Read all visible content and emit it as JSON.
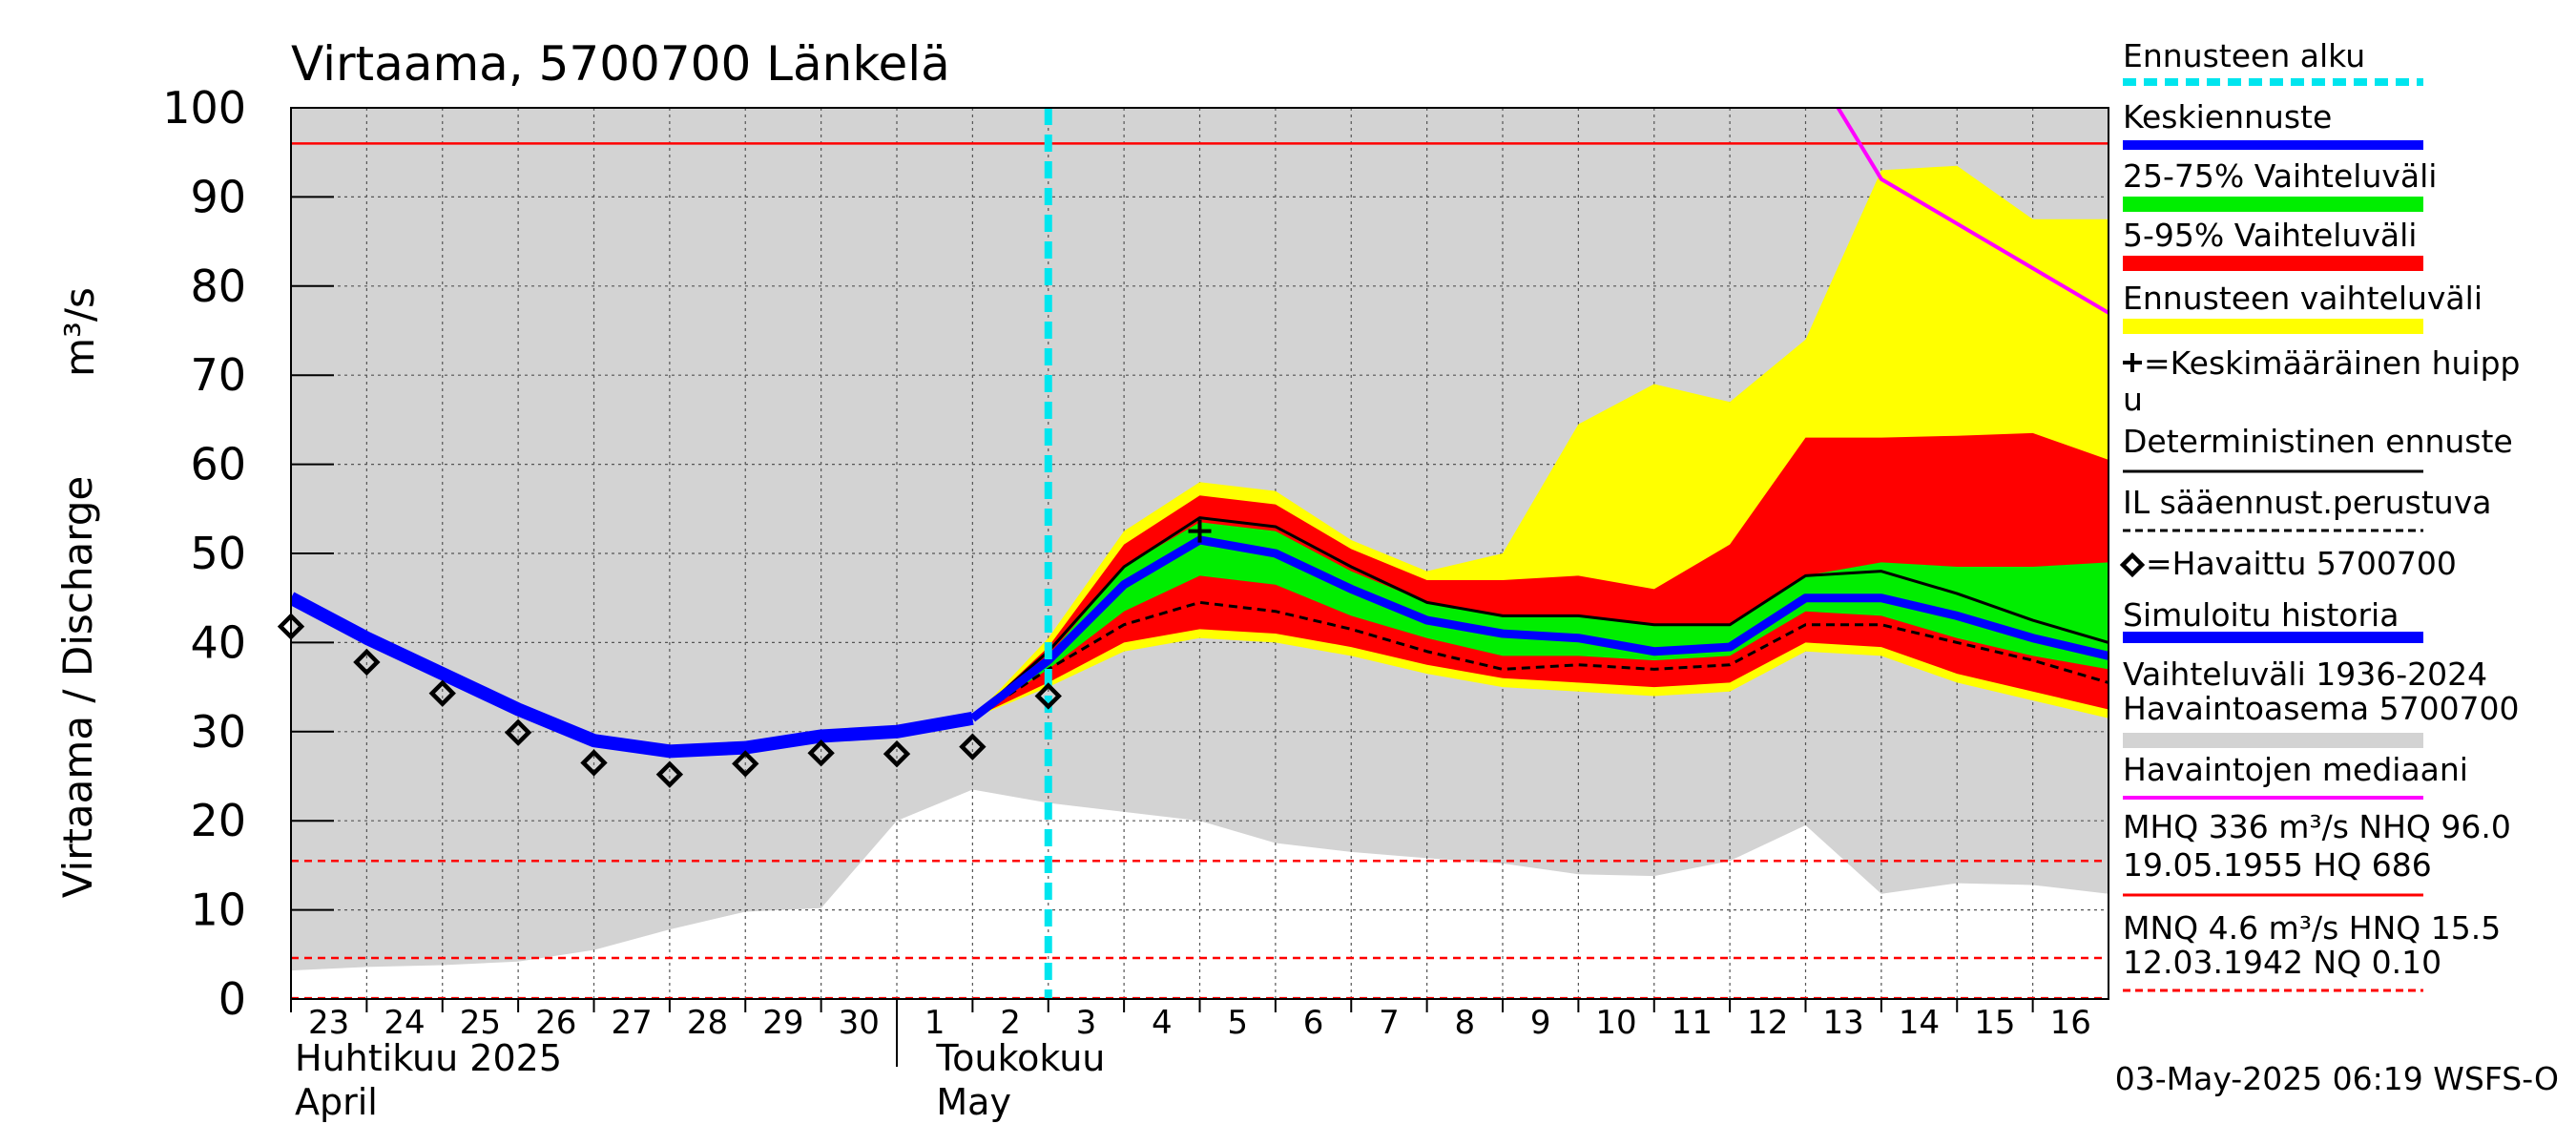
{
  "chart_data": {
    "type": "area",
    "title": "Virtaama, 5700700 Länkelä",
    "ylabel": "Virtaama / Discharge",
    "yunit": "m³/s",
    "ylim": [
      0,
      100
    ],
    "yticks": [
      "0",
      "10",
      "20",
      "30",
      "40",
      "50",
      "60",
      "70",
      "80",
      "90",
      "100"
    ],
    "dates": [
      "2025-04-23",
      "2025-04-24",
      "2025-04-25",
      "2025-04-26",
      "2025-04-27",
      "2025-04-28",
      "2025-04-29",
      "2025-04-30",
      "2025-05-01",
      "2025-05-02",
      "2025-05-03",
      "2025-05-04",
      "2025-05-05",
      "2025-05-06",
      "2025-05-07",
      "2025-05-08",
      "2025-05-09",
      "2025-05-10",
      "2025-05-11",
      "2025-05-12",
      "2025-05-13",
      "2025-05-14",
      "2025-05-15",
      "2025-05-16",
      "2025-05-17"
    ],
    "xtick_labels": [
      "23",
      "24",
      "25",
      "26",
      "27",
      "28",
      "29",
      "30",
      "1",
      "2",
      "3",
      "4",
      "5",
      "6",
      "7",
      "8",
      "9",
      "10",
      "11",
      "12",
      "13",
      "14",
      "15",
      "16"
    ],
    "months": [
      {
        "fi": "Huhtikuu  2025",
        "en": "April"
      },
      {
        "fi": "Toukokuu",
        "en": "May"
      }
    ],
    "forecast_start": "2025-05-03",
    "grid": true,
    "legend_position": "right",
    "climatology_range": {
      "name": "Vaihteluväli 1936-2024 Havaintoasema 5700700",
      "color": "#d3d3d3",
      "x": [
        "2025-04-23",
        "2025-04-24",
        "2025-04-25",
        "2025-04-26",
        "2025-04-27",
        "2025-04-28",
        "2025-04-29",
        "2025-04-30",
        "2025-05-01",
        "2025-05-02",
        "2025-05-03",
        "2025-05-04",
        "2025-05-05",
        "2025-05-06",
        "2025-05-07",
        "2025-05-08",
        "2025-05-09",
        "2025-05-10",
        "2025-05-11",
        "2025-05-12",
        "2025-05-13",
        "2025-05-14",
        "2025-05-15",
        "2025-05-16",
        "2025-05-17"
      ],
      "lower": [
        3.2,
        3.6,
        3.8,
        4.2,
        5.5,
        7.8,
        9.8,
        10.2,
        20.0,
        23.5,
        22.0,
        21.0,
        20.0,
        17.5,
        16.5,
        15.8,
        15.2,
        14.0,
        13.8,
        15.5,
        19.5,
        11.8,
        13.0,
        12.8,
        11.8
      ],
      "upper": [
        100,
        100,
        100,
        100,
        100,
        100,
        100,
        100,
        100,
        100,
        100,
        100,
        100,
        100,
        100,
        100,
        100,
        100,
        100,
        100,
        100,
        100,
        100,
        100,
        100
      ]
    },
    "forecast_range": {
      "name": "Ennusteen vaihteluväli",
      "color": "#ffff00",
      "x": [
        "2025-05-02",
        "2025-05-03",
        "2025-05-04",
        "2025-05-05",
        "2025-05-06",
        "2025-05-07",
        "2025-05-08",
        "2025-05-09",
        "2025-05-10",
        "2025-05-11",
        "2025-05-12",
        "2025-05-13",
        "2025-05-14",
        "2025-05-15",
        "2025-05-16",
        "2025-05-17"
      ],
      "lower": [
        31.5,
        35.0,
        39.0,
        40.5,
        40.0,
        38.5,
        36.5,
        35.0,
        34.5,
        34.0,
        34.5,
        39.0,
        38.5,
        35.5,
        33.5,
        31.5
      ],
      "upper": [
        31.5,
        40.5,
        52.5,
        58.0,
        57.0,
        51.5,
        48.0,
        50.0,
        64.5,
        69.0,
        67.0,
        74.0,
        93.0,
        93.5,
        87.5,
        87.5
      ]
    },
    "range_5_95": {
      "name": "5-95% Vaihteluväli",
      "color": "#ff0000",
      "x": [
        "2025-05-02",
        "2025-05-03",
        "2025-05-04",
        "2025-05-05",
        "2025-05-06",
        "2025-05-07",
        "2025-05-08",
        "2025-05-09",
        "2025-05-10",
        "2025-05-11",
        "2025-05-12",
        "2025-05-13",
        "2025-05-14",
        "2025-05-15",
        "2025-05-16",
        "2025-05-17"
      ],
      "lower": [
        31.5,
        35.5,
        40.0,
        41.5,
        41.0,
        39.5,
        37.5,
        36.0,
        35.5,
        35.0,
        35.5,
        40.0,
        39.5,
        36.5,
        34.5,
        32.5
      ],
      "upper": [
        31.5,
        39.5,
        51.0,
        56.5,
        55.5,
        50.5,
        47.0,
        47.0,
        47.5,
        46.0,
        51.0,
        63.0,
        63.0,
        63.2,
        63.5,
        60.5
      ]
    },
    "range_25_75": {
      "name": "25-75% Vaihteluväli",
      "color": "#00ee00",
      "x": [
        "2025-05-02",
        "2025-05-03",
        "2025-05-04",
        "2025-05-05",
        "2025-05-06",
        "2025-05-07",
        "2025-05-08",
        "2025-05-09",
        "2025-05-10",
        "2025-05-11",
        "2025-05-12",
        "2025-05-13",
        "2025-05-14",
        "2025-05-15",
        "2025-05-16",
        "2025-05-17"
      ],
      "lower": [
        31.5,
        37.0,
        43.5,
        47.5,
        46.5,
        43.0,
        40.5,
        38.5,
        38.5,
        38.0,
        38.5,
        43.5,
        43.0,
        40.5,
        38.5,
        37.0
      ],
      "upper": [
        31.5,
        38.5,
        48.5,
        53.5,
        52.5,
        48.0,
        44.5,
        43.0,
        43.0,
        42.0,
        42.0,
        47.5,
        49.0,
        48.5,
        48.5,
        49.0
      ]
    },
    "series": [
      {
        "name": "Simuloitu historia",
        "color": "#0000ff",
        "x": [
          "2025-04-23",
          "2025-04-24",
          "2025-04-25",
          "2025-04-26",
          "2025-04-27",
          "2025-04-28",
          "2025-04-29",
          "2025-04-30",
          "2025-05-01",
          "2025-05-02"
        ],
        "values": [
          45.0,
          40.5,
          36.5,
          32.5,
          29.0,
          27.8,
          28.2,
          29.5,
          30.0,
          31.5
        ]
      },
      {
        "name": "Keskiennuste",
        "color": "#0000ff",
        "x": [
          "2025-05-02",
          "2025-05-03",
          "2025-05-04",
          "2025-05-05",
          "2025-05-06",
          "2025-05-07",
          "2025-05-08",
          "2025-05-09",
          "2025-05-10",
          "2025-05-11",
          "2025-05-12",
          "2025-05-13",
          "2025-05-14",
          "2025-05-15",
          "2025-05-16",
          "2025-05-17"
        ],
        "values": [
          31.5,
          38.0,
          46.5,
          51.5,
          50.0,
          46.0,
          42.5,
          41.0,
          40.5,
          39.0,
          39.5,
          45.0,
          45.0,
          43.0,
          40.5,
          38.5
        ]
      },
      {
        "name": "Deterministinen ennuste",
        "color": "#000000",
        "x": [
          "2025-05-02",
          "2025-05-03",
          "2025-05-04",
          "2025-05-05",
          "2025-05-06",
          "2025-05-07",
          "2025-05-08",
          "2025-05-09",
          "2025-05-10",
          "2025-05-11",
          "2025-05-12",
          "2025-05-13",
          "2025-05-14",
          "2025-05-15",
          "2025-05-16",
          "2025-05-17"
        ],
        "values": [
          31.5,
          39.0,
          48.5,
          54.0,
          53.0,
          48.5,
          44.5,
          43.0,
          43.0,
          42.0,
          42.0,
          47.5,
          48.0,
          45.5,
          42.5,
          40.0
        ]
      },
      {
        "name": "IL sääennust.perustuva",
        "color": "#000000",
        "x": [
          "2025-05-02",
          "2025-05-03",
          "2025-05-04",
          "2025-05-05",
          "2025-05-06",
          "2025-05-07",
          "2025-05-08",
          "2025-05-09",
          "2025-05-10",
          "2025-05-11",
          "2025-05-12",
          "2025-05-13",
          "2025-05-14",
          "2025-05-15",
          "2025-05-16",
          "2025-05-17"
        ],
        "values": [
          31.5,
          37.0,
          42.0,
          44.5,
          43.5,
          41.5,
          39.0,
          37.0,
          37.5,
          37.0,
          37.5,
          42.0,
          42.0,
          40.0,
          38.0,
          35.5
        ]
      },
      {
        "name": "Havaittu 5700700",
        "color": "#000000",
        "x": [
          "2025-04-23",
          "2025-04-24",
          "2025-04-25",
          "2025-04-26",
          "2025-04-27",
          "2025-04-28",
          "2025-04-29",
          "2025-04-30",
          "2025-05-01",
          "2025-05-02",
          "2025-05-03"
        ],
        "values": [
          41.8,
          37.8,
          34.3,
          29.9,
          26.5,
          25.2,
          26.4,
          27.6,
          27.5,
          28.3,
          34.0
        ]
      },
      {
        "name": "Havaintojen mediaani",
        "color": "#ff00ff",
        "x": [
          "2025-05-13",
          "2025-05-14",
          "2025-05-15",
          "2025-05-16",
          "2025-05-17"
        ],
        "values": [
          106.0,
          92.0,
          87.0,
          82.0,
          77.0
        ]
      }
    ],
    "mean_peak": {
      "label": "=Keskimääräinen huippu",
      "x": "2025-05-05",
      "y": 52.5
    },
    "reference_lines": [
      {
        "name": "NHQ",
        "value": 96.0,
        "color": "#ff0000",
        "style": "solid"
      },
      {
        "name": "HNQ",
        "value": 15.5,
        "color": "#ff0000",
        "style": "dashed"
      },
      {
        "name": "MNQ",
        "value": 4.6,
        "color": "#ff0000",
        "style": "dashed"
      },
      {
        "name": "NQ",
        "value": 0.1,
        "color": "#ff0000",
        "style": "dashed"
      }
    ],
    "legend": [
      {
        "label": "Ennusteen alku",
        "color": "#00e5ee",
        "style": "dashed",
        "width": 8
      },
      {
        "label": "Keskiennuste",
        "color": "#0000ff",
        "style": "solid",
        "width": 10
      },
      {
        "label": "25-75% Vaihteluväli",
        "color": "#00ee00",
        "style": "solid",
        "width": 16
      },
      {
        "label": "5-95% Vaihteluväli",
        "color": "#ff0000",
        "style": "solid",
        "width": 16
      },
      {
        "label": "Ennusteen vaihteluväli",
        "color": "#ffff00",
        "style": "solid",
        "width": 16
      },
      {
        "label": "=Keskimääräinen huipp",
        "label2": "u",
        "marker": "cross"
      },
      {
        "label": "Deterministinen ennuste",
        "color": "#000000",
        "style": "solid",
        "width": 3
      },
      {
        "label": "IL sääennust.perustuva",
        "color": "#000000",
        "style": "dashed",
        "width": 3
      },
      {
        "label": "=Havaittu 5700700",
        "marker": "diamond"
      },
      {
        "label": "Simuloitu historia",
        "color": "#0000ff",
        "style": "solid",
        "width": 12
      },
      {
        "label": "Vaihteluväli 1936-2024",
        "label2": " Havaintoasema 5700700",
        "color": "#d3d3d3",
        "style": "solid",
        "width": 16
      },
      {
        "label": "Havaintojen mediaani",
        "color": "#ff00ff",
        "style": "solid",
        "width": 4
      },
      {
        "label": "MHQ  336 m³/s NHQ 96.0",
        "label2": "19.05.1955 HQ  686",
        "color": "#ff0000",
        "style": "solid",
        "width": 3
      },
      {
        "label": "MNQ  4.6 m³/s HNQ 15.5",
        "label2": "12.03.1942 NQ 0.10",
        "color": "#ff0000",
        "style": "dashed",
        "width": 3
      }
    ],
    "footer": "03-May-2025 06:19 WSFS-O"
  }
}
